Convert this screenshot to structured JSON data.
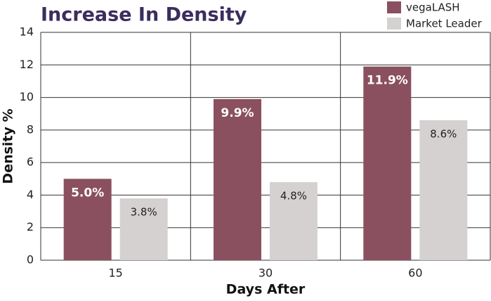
{
  "chart_data": {
    "type": "bar",
    "title": "Increase In Density",
    "x_label": "Days After",
    "y_label": "Density %",
    "categories": [
      "15",
      "30",
      "60"
    ],
    "series": [
      {
        "name": "vegaLASH",
        "color": "#8a5060",
        "values": [
          5.0,
          9.9,
          11.9
        ],
        "value_labels": [
          "5.0%",
          "9.9%",
          "11.9%"
        ]
      },
      {
        "name": "Market Leader",
        "color": "#d5d1d1",
        "values": [
          3.8,
          4.8,
          8.6
        ],
        "value_labels": [
          "3.8%",
          "4.8%",
          "8.6%"
        ]
      }
    ],
    "ylim": [
      0,
      14
    ],
    "yticks": [
      0,
      2,
      4,
      6,
      8,
      10,
      12,
      14
    ],
    "grid": true,
    "legend": "top-right"
  }
}
